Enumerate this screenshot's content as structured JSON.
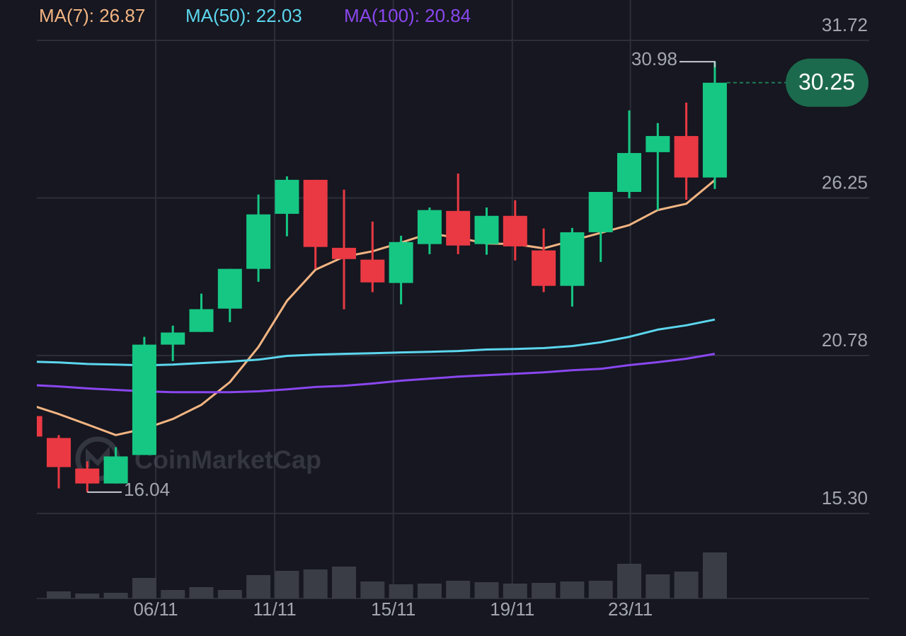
{
  "chart_data": {
    "type": "candlestick",
    "categories": [
      null,
      null,
      null,
      null,
      null,
      null,
      null,
      null,
      null,
      null,
      null,
      null,
      null,
      null,
      null,
      null,
      null,
      null,
      null,
      null,
      null,
      null,
      null,
      null,
      null
    ],
    "open": [
      18.68,
      17.92,
      16.86,
      16.34,
      17.33,
      21.16,
      21.6,
      22.41,
      23.79,
      25.7,
      26.88,
      24.52,
      24.11,
      23.3,
      24.65,
      25.8,
      24.65,
      25.63,
      24.43,
      23.2,
      25.06,
      26.46,
      27.84,
      28.4,
      26.96
    ],
    "high": [
      18.68,
      18.02,
      17.11,
      17.6,
      21.43,
      21.82,
      22.93,
      23.79,
      26.37,
      27.0,
      26.88,
      26.54,
      25.43,
      24.94,
      25.92,
      27.1,
      25.92,
      26.17,
      25.19,
      25.21,
      26.46,
      29.29,
      28.85,
      29.56,
      30.98
    ],
    "low": [
      17.97,
      16.17,
      16.04,
      16.34,
      17.33,
      20.59,
      21.6,
      21.94,
      23.34,
      24.92,
      23.79,
      22.39,
      22.98,
      22.56,
      24.3,
      24.3,
      24.28,
      24.08,
      22.98,
      22.48,
      24.03,
      26.24,
      25.83,
      26.19,
      26.56
    ],
    "close": [
      17.97,
      16.91,
      16.34,
      17.28,
      21.16,
      21.58,
      22.39,
      23.79,
      25.68,
      26.88,
      24.55,
      24.13,
      23.32,
      24.72,
      25.83,
      24.6,
      25.63,
      24.57,
      23.2,
      25.06,
      26.46,
      27.81,
      28.4,
      26.96,
      30.25
    ],
    "up_color": "#16c784",
    "down_color": "#ea3943",
    "volume": [
      null,
      10,
      7,
      8,
      29,
      12,
      16,
      12,
      33,
      39,
      41,
      45,
      24,
      20,
      21,
      25,
      23,
      21,
      22,
      24,
      25,
      49,
      34,
      38,
      65
    ],
    "volume_color": "#3a3c46",
    "series": [
      {
        "name": "MA(7): 26.87",
        "color": "#f2b482",
        "values": [
          19.07,
          18.75,
          18.39,
          18.02,
          18.24,
          18.58,
          19.07,
          19.86,
          21.08,
          22.68,
          23.76,
          24.21,
          24.4,
          24.7,
          25.02,
          24.87,
          24.67,
          24.65,
          24.5,
          24.77,
          25.04,
          25.31,
          25.83,
          26.05,
          26.87
        ]
      },
      {
        "name": "MA(50): 22.03",
        "color": "#5cd6ee",
        "values": [
          20.57,
          20.54,
          20.49,
          20.47,
          20.44,
          20.47,
          20.52,
          20.57,
          20.64,
          20.77,
          20.81,
          20.84,
          20.86,
          20.89,
          20.91,
          20.94,
          20.99,
          21.01,
          21.04,
          21.11,
          21.24,
          21.43,
          21.68,
          21.83,
          22.03
        ]
      },
      {
        "name": "MA(100): 20.84",
        "color": "#8a47ef",
        "values": [
          19.76,
          19.71,
          19.64,
          19.59,
          19.54,
          19.51,
          19.51,
          19.51,
          19.54,
          19.61,
          19.69,
          19.73,
          19.81,
          19.91,
          19.98,
          20.05,
          20.1,
          20.15,
          20.2,
          20.27,
          20.32,
          20.45,
          20.55,
          20.67,
          20.84
        ]
      }
    ],
    "ylim": [
      15.3,
      31.72
    ],
    "yticks": [
      31.72,
      26.25,
      20.78,
      {
        "value": 15.3,
        "label": "15.30"
      }
    ],
    "xticks": [
      {
        "value": 4.4,
        "label": "06/11"
      },
      {
        "value": 8.57,
        "label": "11/11"
      },
      {
        "value": 12.73,
        "label": "15/11"
      },
      {
        "value": 16.9,
        "label": "19/11"
      },
      {
        "value": 21.04,
        "label": "23/11"
      }
    ],
    "grid": true,
    "annotations": {
      "high": 30.98,
      "low": 16.04,
      "last": 30.25
    },
    "watermark": "CoinMarketCap"
  }
}
